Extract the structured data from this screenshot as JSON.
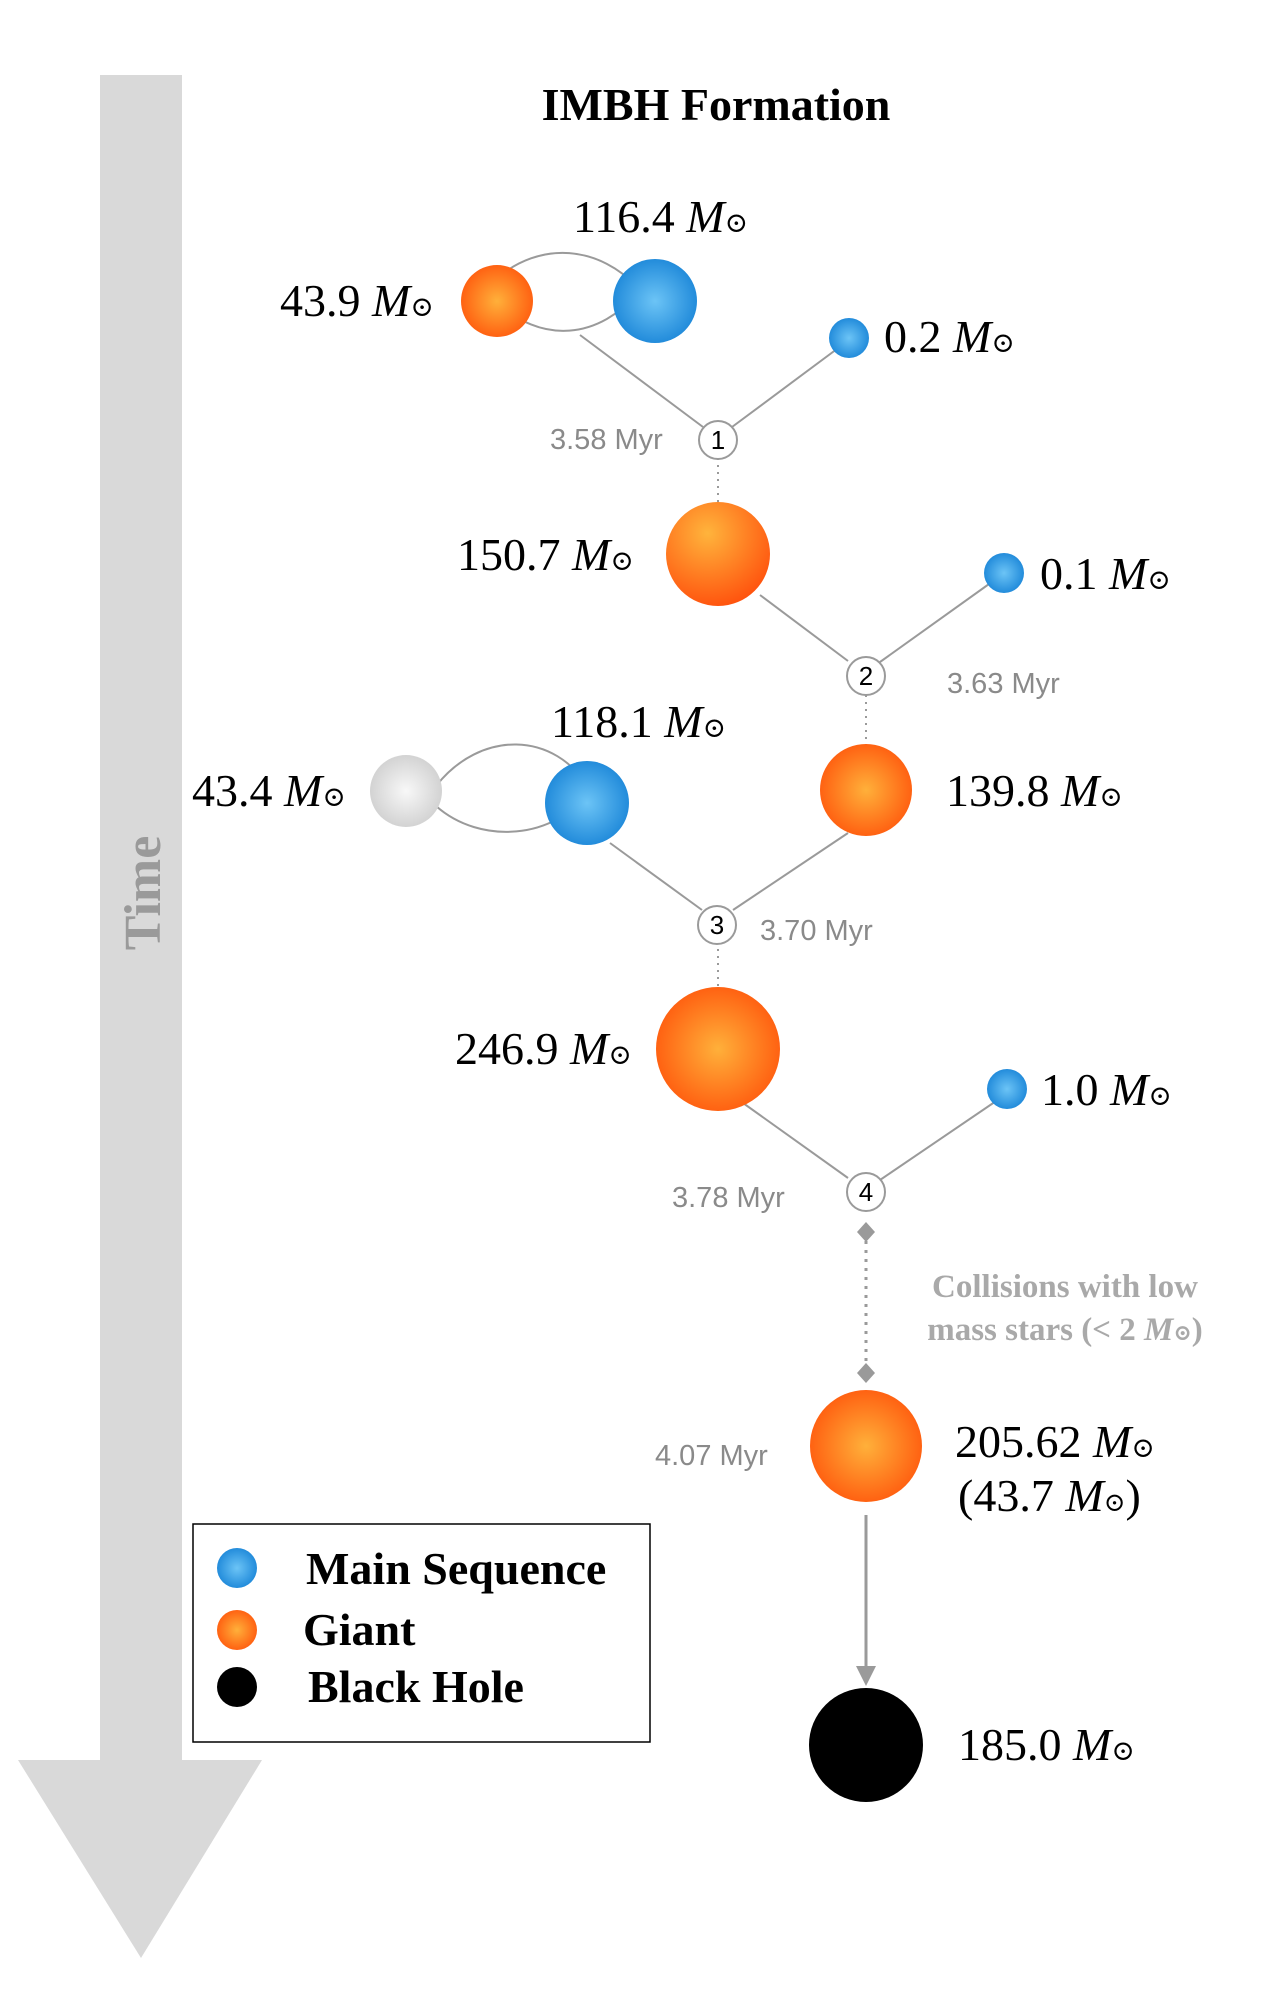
{
  "title": "IMBH Formation",
  "time_axis_label": "Time",
  "unit_symbol": "M",
  "solar_symbol": "⊙",
  "stars": {
    "s1a": {
      "mass": "43.9",
      "type": "giant"
    },
    "s1b": {
      "mass": "116.4",
      "type": "main-sequence"
    },
    "s1c": {
      "mass": "0.2",
      "type": "main-sequence"
    },
    "s2a": {
      "mass": "150.7",
      "type": "giant"
    },
    "s2b": {
      "mass": "0.1",
      "type": "main-sequence"
    },
    "s3a": {
      "mass": "43.4",
      "type": "remnant"
    },
    "s3b": {
      "mass": "118.1",
      "type": "main-sequence"
    },
    "s3c": {
      "mass": "139.8",
      "type": "giant"
    },
    "s4a": {
      "mass": "246.9",
      "type": "giant"
    },
    "s4b": {
      "mass": "1.0",
      "type": "main-sequence"
    },
    "s5": {
      "mass": "205.62",
      "type": "giant",
      "secondary_mass": "43.7"
    },
    "bh": {
      "mass": "185.0",
      "type": "black-hole"
    }
  },
  "events": [
    {
      "number": "1",
      "time": "3.58 Myr"
    },
    {
      "number": "2",
      "time": "3.63 Myr"
    },
    {
      "number": "3",
      "time": "3.70 Myr"
    },
    {
      "number": "4",
      "time": "3.78 Myr"
    }
  ],
  "final_time": "4.07 Myr",
  "collision_note": {
    "line1": "Collisions with low",
    "line2_prefix": "mass stars (< 2 ",
    "line2_suffix": ")"
  },
  "legend": [
    {
      "label": "Main Sequence",
      "color": "#1e90e0"
    },
    {
      "label": "Giant",
      "color": "#ff6a12"
    },
    {
      "label": "Black Hole",
      "color": "#000000"
    }
  ],
  "colors": {
    "main_sequence": "#1e90e0",
    "giant": "#ff6a12",
    "remnant": "#d6d6d6",
    "black_hole": "#000000",
    "arrow": "#d9d9d9",
    "line": "#9a9a9a"
  }
}
